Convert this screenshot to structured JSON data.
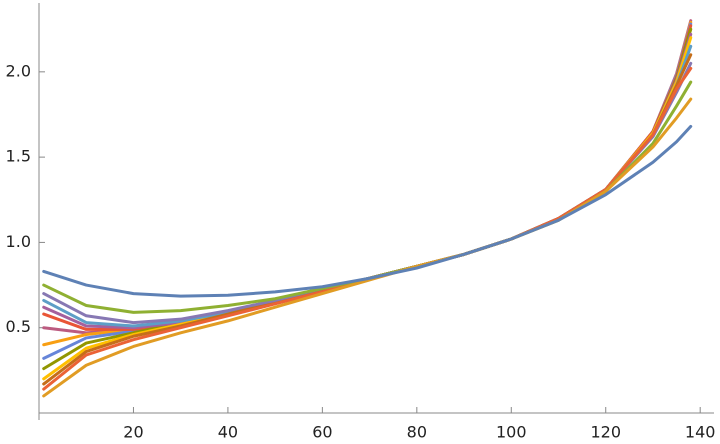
{
  "chart_data": {
    "type": "line",
    "grid": false,
    "x": [
      1,
      10,
      20,
      30,
      40,
      50,
      60,
      70,
      80,
      90,
      100,
      110,
      120,
      130,
      135,
      138
    ],
    "xlim": [
      0,
      142.5
    ],
    "ylim": [
      0,
      2.4
    ],
    "xticks": [
      20,
      40,
      60,
      80,
      100,
      120,
      140
    ],
    "yticks": [
      0.5,
      {
        "value": 1.0,
        "label": "1.0"
      },
      1.5,
      {
        "value": 2.0,
        "label": "2.0"
      }
    ],
    "series": [
      {
        "color": "#5e81b5",
        "values": [
          0.83,
          0.75,
          0.7,
          0.685,
          0.69,
          0.71,
          0.74,
          0.79,
          0.85,
          0.93,
          1.02,
          1.13,
          1.28,
          1.47,
          1.59,
          1.68
        ]
      },
      {
        "color": "#e19c24",
        "values": [
          0.1,
          0.28,
          0.39,
          0.47,
          0.54,
          0.62,
          0.7,
          0.78,
          0.86,
          0.93,
          1.02,
          1.13,
          1.3,
          1.56,
          1.73,
          1.84
        ]
      },
      {
        "color": "#8fb032",
        "values": [
          0.75,
          0.63,
          0.59,
          0.6,
          0.63,
          0.67,
          0.73,
          0.79,
          0.86,
          0.93,
          1.02,
          1.13,
          1.3,
          1.58,
          1.8,
          1.94
        ]
      },
      {
        "color": "#eb6235",
        "values": [
          0.14,
          0.34,
          0.43,
          0.5,
          0.57,
          0.64,
          0.71,
          0.79,
          0.86,
          0.93,
          1.02,
          1.14,
          1.31,
          1.63,
          1.9,
          2.02
        ]
      },
      {
        "color": "#8778b3",
        "values": [
          0.7,
          0.57,
          0.53,
          0.55,
          0.6,
          0.66,
          0.73,
          0.79,
          0.86,
          0.93,
          1.02,
          1.14,
          1.31,
          1.62,
          1.88,
          2.05
        ]
      },
      {
        "color": "#c56e1a",
        "values": [
          0.17,
          0.36,
          0.45,
          0.51,
          0.58,
          0.65,
          0.72,
          0.79,
          0.86,
          0.93,
          1.02,
          1.14,
          1.31,
          1.63,
          1.92,
          2.1
        ]
      },
      {
        "color": "#5d9ec7",
        "values": [
          0.66,
          0.53,
          0.51,
          0.54,
          0.59,
          0.65,
          0.72,
          0.79,
          0.86,
          0.93,
          1.02,
          1.14,
          1.31,
          1.63,
          1.92,
          2.15
        ]
      },
      {
        "color": "#ffbf00",
        "values": [
          0.2,
          0.38,
          0.46,
          0.52,
          0.58,
          0.65,
          0.72,
          0.79,
          0.86,
          0.93,
          1.02,
          1.14,
          1.31,
          1.64,
          1.94,
          2.2
        ]
      },
      {
        "color": "#a5609d",
        "values": [
          0.62,
          0.51,
          0.5,
          0.53,
          0.59,
          0.65,
          0.72,
          0.79,
          0.86,
          0.93,
          1.02,
          1.14,
          1.31,
          1.64,
          1.95,
          2.22
        ]
      },
      {
        "color": "#929600",
        "values": [
          0.26,
          0.41,
          0.47,
          0.53,
          0.59,
          0.65,
          0.72,
          0.79,
          0.86,
          0.93,
          1.02,
          1.14,
          1.31,
          1.64,
          1.96,
          2.25
        ]
      },
      {
        "color": "#e95536",
        "values": [
          0.58,
          0.49,
          0.49,
          0.53,
          0.58,
          0.65,
          0.72,
          0.79,
          0.86,
          0.93,
          1.02,
          1.14,
          1.31,
          1.65,
          1.97,
          2.27
        ]
      },
      {
        "color": "#6685d9",
        "values": [
          0.32,
          0.44,
          0.48,
          0.53,
          0.59,
          0.65,
          0.72,
          0.79,
          0.86,
          0.93,
          1.02,
          1.14,
          1.31,
          1.65,
          1.98,
          2.28
        ]
      },
      {
        "color": "#f89f13",
        "values": [
          0.4,
          0.46,
          0.49,
          0.53,
          0.59,
          0.65,
          0.72,
          0.79,
          0.86,
          0.93,
          1.02,
          1.14,
          1.31,
          1.65,
          1.98,
          2.29
        ]
      },
      {
        "color": "#bc5b80",
        "values": [
          0.5,
          0.47,
          0.49,
          0.53,
          0.59,
          0.65,
          0.72,
          0.79,
          0.86,
          0.93,
          1.02,
          1.14,
          1.31,
          1.65,
          1.99,
          2.3
        ]
      }
    ]
  }
}
